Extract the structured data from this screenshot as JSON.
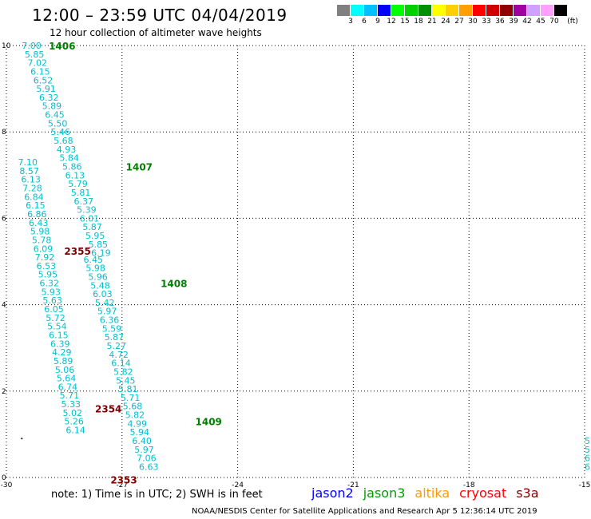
{
  "header": {
    "title": "12:00 – 23:59 UTC 04/04/2019",
    "subtitle": "12 hour collection of altimeter wave heights"
  },
  "colorbar": {
    "colors": [
      "#808080",
      "#00ffff",
      "#00c0ff",
      "#0000ff",
      "#00ff00",
      "#00d000",
      "#009000",
      "#ffff00",
      "#ffd000",
      "#ffa000",
      "#ff0000",
      "#d00000",
      "#900000",
      "#a000a0",
      "#d0a0ff",
      "#ffa0ff",
      "#000000"
    ],
    "labels": [
      "3",
      "6",
      "9",
      "12",
      "15",
      "18",
      "21",
      "24",
      "27",
      "30",
      "33",
      "36",
      "39",
      "42",
      "45",
      "70",
      "(ft)"
    ]
  },
  "map": {
    "lon_range": [
      -30,
      -15
    ],
    "lat_range": [
      0,
      10
    ],
    "x_ticks": [
      "-30",
      "-27",
      "-24",
      "-21",
      "-18",
      "-15"
    ],
    "y_ticks": [
      "0",
      "2",
      "4",
      "6",
      "8",
      "10"
    ],
    "track_labels": [
      {
        "text": "1406",
        "lon": -28.9,
        "lat": 10.0,
        "color": "#008000"
      },
      {
        "text": "1407",
        "lon": -26.9,
        "lat": 7.2,
        "color": "#008000"
      },
      {
        "text": "1408",
        "lon": -26.0,
        "lat": 4.5,
        "color": "#008000"
      },
      {
        "text": "1409",
        "lon": -25.1,
        "lat": 1.3,
        "color": "#008000"
      },
      {
        "text": "2355",
        "lon": -28.5,
        "lat": 5.25,
        "color": "#800000"
      },
      {
        "text": "2354",
        "lon": -27.7,
        "lat": 1.6,
        "color": "#800000"
      },
      {
        "text": "2353",
        "lon": -27.3,
        "lat": -0.05,
        "color": "#800000"
      }
    ],
    "tracks": [
      {
        "name": "jason3-a",
        "color": "#00c0d0",
        "lon_start": -29.6,
        "lat_start": 10.0,
        "lon_step": 0.075,
        "lat_step": -0.2,
        "values": [
          "7.00",
          "5.85",
          "7.02",
          "6.15",
          "6.52",
          "5.91",
          "6.32",
          "5.89",
          "6.45",
          "5.50",
          "5.46",
          "5.68",
          "4.93",
          "5.84",
          "5.86",
          "6.13",
          "5.79",
          "5.81",
          "6.37",
          "5.39",
          "6.01",
          "5.87",
          "5.95",
          "5.85",
          "6.19"
        ]
      },
      {
        "name": "jason3-b",
        "color": "#00c0d0",
        "lon_start": -28.0,
        "lat_start": 5.05,
        "lon_step": 0.06,
        "lat_step": -0.2,
        "values": [
          "6.45",
          "5.98",
          "5.96",
          "5.48",
          "6.03",
          "5.42",
          "5.97",
          "6.36",
          "5.59",
          "5.87",
          "5.27",
          "4.72",
          "6.14",
          "5.82",
          "5.45",
          "5.81",
          "5.71",
          "5.68",
          "5.82",
          "4.99",
          "5.94",
          "6.40",
          "5.97",
          "7.06",
          "6.63"
        ]
      },
      {
        "name": "cryosat-a",
        "color": "#00c0d0",
        "lon_start": -29.7,
        "lat_start": 7.3,
        "lon_step": 0.04,
        "lat_step": -0.2,
        "values": [
          "7.10",
          "8.57",
          "6.13",
          "7.28",
          "6.84",
          "6.15",
          "6.86",
          "6.43",
          "5.98",
          "5.78",
          "6.09",
          "7.92",
          "6.53",
          "5.95",
          "6.32",
          "5.93",
          "5.63",
          "6.05",
          "5.72",
          "5.54",
          "6.15",
          "6.39",
          "4.29",
          "5.89",
          "5.06",
          "5.64",
          "6.74",
          "5.71",
          "5.33",
          "5.02",
          "5.26",
          "6.14"
        ]
      },
      {
        "name": "edge",
        "color": "#00c0d0",
        "lon_start": -15.0,
        "lat_start": 0.85,
        "lon_step": 0.0,
        "lat_step": -0.2,
        "values": [
          "5",
          "5",
          "6",
          "6"
        ]
      }
    ],
    "stray_points": [
      {
        "lon": -29.6,
        "lat": 0.9
      }
    ]
  },
  "footer": {
    "note": "note:  1) Time is in UTC;  2) SWH is in feet",
    "satellites": [
      {
        "name": "jason2",
        "color": "#0000ff"
      },
      {
        "name": "jason3",
        "color": "#00a000"
      },
      {
        "name": "altika",
        "color": "#ff9900"
      },
      {
        "name": "cryosat",
        "color": "#ff0000"
      },
      {
        "name": "s3a",
        "color": "#800000"
      }
    ],
    "credit": "NOAA/NESDIS Center for Satellite Applications and Research    Apr  5 12:36:14 UTC 2019"
  }
}
